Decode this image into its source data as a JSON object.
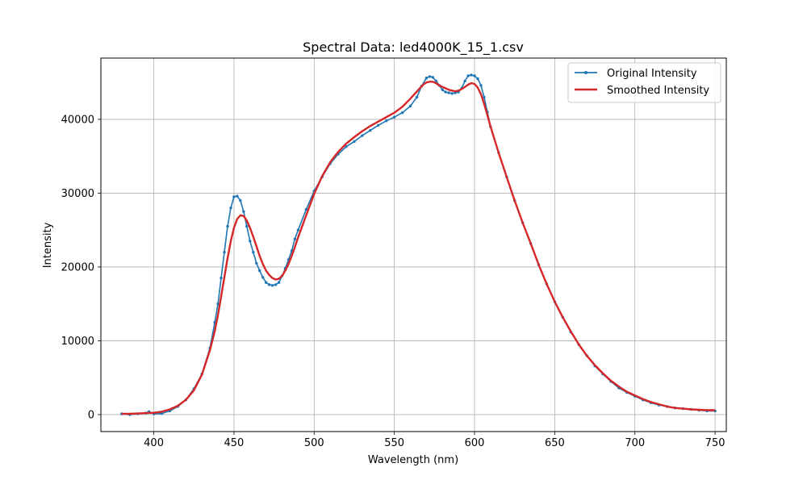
{
  "chart_data": {
    "type": "line",
    "title": "Spectral Data: led4000K_15_1.csv",
    "xlabel": "Wavelength (nm)",
    "ylabel": "Intensity",
    "xlim": [
      367,
      757
    ],
    "ylim": [
      -2300,
      48300
    ],
    "xticks": [
      400,
      450,
      500,
      550,
      600,
      650,
      700,
      750
    ],
    "yticks": [
      0,
      10000,
      20000,
      30000,
      40000
    ],
    "grid": true,
    "legend_position": "top-right",
    "series": [
      {
        "name": "Original Intensity",
        "color": "#1f77b4",
        "marker": "dot",
        "x": [
          380,
          385,
          390,
          395,
          397,
          400,
          405,
          410,
          415,
          420,
          425,
          430,
          435,
          438,
          440,
          442,
          444,
          446,
          448,
          450,
          452,
          454,
          456,
          458,
          460,
          462,
          464,
          466,
          468,
          470,
          472,
          474,
          476,
          478,
          480,
          482,
          484,
          486,
          488,
          490,
          495,
          500,
          505,
          510,
          515,
          520,
          525,
          530,
          535,
          540,
          545,
          550,
          555,
          560,
          564,
          567,
          570,
          572,
          574,
          576,
          578,
          580,
          582,
          584,
          586,
          588,
          590,
          592,
          594,
          596,
          598,
          600,
          602,
          604,
          606,
          608,
          610,
          615,
          620,
          625,
          630,
          635,
          640,
          645,
          650,
          655,
          660,
          665,
          670,
          675,
          680,
          685,
          690,
          695,
          700,
          705,
          710,
          715,
          720,
          725,
          730,
          735,
          740,
          745,
          750
        ],
        "y": [
          100,
          0,
          100,
          200,
          400,
          100,
          150,
          500,
          1100,
          2000,
          3500,
          5500,
          9000,
          12500,
          15000,
          18500,
          22000,
          25500,
          28000,
          29500,
          29600,
          29000,
          27500,
          25500,
          23500,
          22000,
          20500,
          19500,
          18600,
          17900,
          17600,
          17500,
          17600,
          17900,
          18800,
          19800,
          21000,
          22200,
          23800,
          25000,
          27800,
          30300,
          32200,
          34000,
          35300,
          36300,
          37000,
          37800,
          38500,
          39200,
          39800,
          40300,
          40900,
          41800,
          43000,
          44500,
          45600,
          45800,
          45700,
          45200,
          44600,
          44000,
          43700,
          43600,
          43500,
          43600,
          43700,
          44200,
          45200,
          45900,
          46000,
          45900,
          45500,
          44600,
          43000,
          41000,
          39000,
          35500,
          32200,
          29000,
          26000,
          23200,
          20300,
          17700,
          15300,
          13200,
          11200,
          9500,
          8000,
          6600,
          5500,
          4500,
          3600,
          3000,
          2500,
          2000,
          1600,
          1300,
          1100,
          900,
          800,
          700,
          600,
          500,
          500
        ]
      },
      {
        "name": "Smoothed Intensity",
        "color": "#d62728",
        "marker": "none",
        "x": [
          380,
          385,
          390,
          395,
          400,
          405,
          410,
          415,
          420,
          425,
          430,
          435,
          438,
          440,
          442,
          444,
          446,
          448,
          450,
          452,
          454,
          456,
          458,
          460,
          462,
          464,
          466,
          468,
          470,
          472,
          474,
          476,
          478,
          480,
          482,
          484,
          486,
          488,
          490,
          495,
          500,
          505,
          510,
          515,
          520,
          525,
          530,
          535,
          540,
          545,
          550,
          555,
          560,
          565,
          568,
          570,
          572,
          574,
          576,
          578,
          580,
          582,
          584,
          586,
          588,
          590,
          592,
          594,
          596,
          598,
          600,
          602,
          604,
          606,
          608,
          610,
          615,
          620,
          625,
          630,
          635,
          640,
          645,
          650,
          655,
          660,
          665,
          670,
          675,
          680,
          685,
          690,
          695,
          700,
          705,
          710,
          715,
          720,
          725,
          730,
          735,
          740,
          745,
          750
        ],
        "y": [
          100,
          100,
          150,
          200,
          250,
          400,
          700,
          1200,
          2000,
          3300,
          5400,
          8700,
          11300,
          13500,
          16000,
          18600,
          21200,
          23500,
          25300,
          26500,
          27000,
          26900,
          26300,
          25300,
          24100,
          22800,
          21500,
          20400,
          19500,
          18900,
          18500,
          18300,
          18400,
          18800,
          19500,
          20400,
          21500,
          22700,
          24000,
          27000,
          29900,
          32300,
          34200,
          35600,
          36700,
          37600,
          38400,
          39100,
          39700,
          40300,
          40900,
          41700,
          42800,
          44000,
          44700,
          45000,
          45100,
          45100,
          44900,
          44600,
          44400,
          44200,
          44000,
          43900,
          43800,
          43900,
          44100,
          44400,
          44700,
          44900,
          44800,
          44300,
          43400,
          42100,
          40600,
          39000,
          35500,
          32200,
          29000,
          26000,
          23200,
          20300,
          17700,
          15300,
          13200,
          11300,
          9500,
          8000,
          6700,
          5600,
          4600,
          3800,
          3100,
          2600,
          2100,
          1700,
          1400,
          1100,
          900,
          800,
          700,
          650,
          600,
          600
        ]
      }
    ]
  }
}
